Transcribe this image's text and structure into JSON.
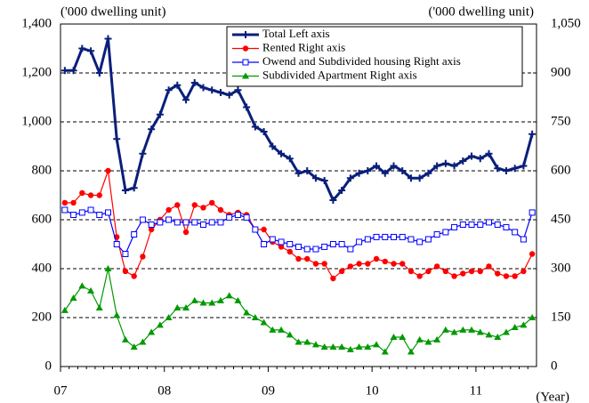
{
  "chart_data": {
    "type": "line",
    "y_unit_label": "('000 dwelling unit)",
    "y2_unit_label": "('000 dwelling unit)",
    "x_unit_label": "(Year)",
    "categories": [
      "07",
      null,
      null,
      null,
      null,
      null,
      null,
      null,
      null,
      null,
      null,
      null,
      "08",
      null,
      null,
      null,
      null,
      null,
      null,
      null,
      null,
      null,
      null,
      null,
      "09",
      null,
      null,
      null,
      null,
      null,
      null,
      null,
      null,
      null,
      null,
      null,
      "10",
      null,
      null,
      null,
      null,
      null,
      null,
      null,
      null,
      null,
      null,
      null,
      "11",
      null,
      null,
      null,
      null,
      null,
      null
    ],
    "ylim": [
      0,
      1400
    ],
    "yticks": [
      0,
      200,
      400,
      600,
      800,
      {
        "value": 1000,
        "label": "1,000"
      },
      {
        "value": 1200,
        "label": "1,200"
      },
      {
        "value": 1400,
        "label": "1,400"
      }
    ],
    "y2lim": [
      0,
      1050
    ],
    "y2ticks": [
      0,
      150,
      300,
      450,
      600,
      750,
      900,
      {
        "value": 1050,
        "label": "1,050"
      }
    ],
    "grid": true,
    "legend": "top",
    "series": [
      {
        "name": "Total  Left axis",
        "color": "#0a1f7a",
        "marker": "plus",
        "axis": "y",
        "values": [
          1210,
          1210,
          1300,
          1290,
          1200,
          1340,
          930,
          720,
          730,
          870,
          970,
          1030,
          1130,
          1150,
          1090,
          1160,
          1140,
          1130,
          1120,
          1110,
          1130,
          1060,
          980,
          960,
          900,
          870,
          850,
          790,
          800,
          770,
          760,
          680,
          720,
          770,
          790,
          800,
          820,
          790,
          820,
          800,
          770,
          770,
          790,
          820,
          830,
          820,
          840,
          860,
          850,
          870,
          810,
          800,
          810,
          820,
          950
        ]
      },
      {
        "name": "Rented  Right axis",
        "color": "#ff0000",
        "marker": "circle",
        "axis": "y2",
        "values": [
          502,
          502,
          532,
          525,
          525,
          600,
          397,
          292,
          277,
          337,
          420,
          450,
          480,
          495,
          412,
          495,
          487,
          502,
          480,
          465,
          472,
          465,
          420,
          420,
          382,
          367,
          352,
          330,
          330,
          315,
          315,
          270,
          292,
          307,
          315,
          315,
          330,
          322,
          315,
          315,
          292,
          277,
          292,
          307,
          292,
          277,
          285,
          292,
          292,
          307,
          285,
          277,
          277,
          292,
          345
        ]
      },
      {
        "name": "Owend and Subdivided housing  Right axis",
        "color": "#0000ff",
        "marker": "square",
        "axis": "y2",
        "values": [
          480,
          465,
          472,
          480,
          465,
          472,
          375,
          345,
          405,
          450,
          435,
          442,
          450,
          442,
          442,
          442,
          435,
          442,
          442,
          457,
          465,
          457,
          420,
          375,
          390,
          382,
          375,
          367,
          360,
          360,
          367,
          375,
          375,
          360,
          382,
          390,
          397,
          397,
          397,
          397,
          390,
          382,
          390,
          405,
          412,
          427,
          435,
          435,
          435,
          442,
          435,
          427,
          412,
          390,
          472
        ]
      },
      {
        "name": "Subdivided Apartment  Right axis",
        "color": "#009900",
        "marker": "triangle",
        "axis": "y2",
        "values": [
          172,
          210,
          247,
          232,
          180,
          300,
          157,
          82,
          60,
          75,
          105,
          127,
          150,
          180,
          180,
          202,
          195,
          195,
          202,
          217,
          202,
          165,
          150,
          135,
          112,
          112,
          97,
          75,
          75,
          67,
          60,
          60,
          60,
          52,
          60,
          60,
          67,
          45,
          90,
          90,
          45,
          82,
          75,
          82,
          112,
          105,
          112,
          112,
          105,
          97,
          90,
          105,
          120,
          127,
          150
        ]
      }
    ]
  }
}
